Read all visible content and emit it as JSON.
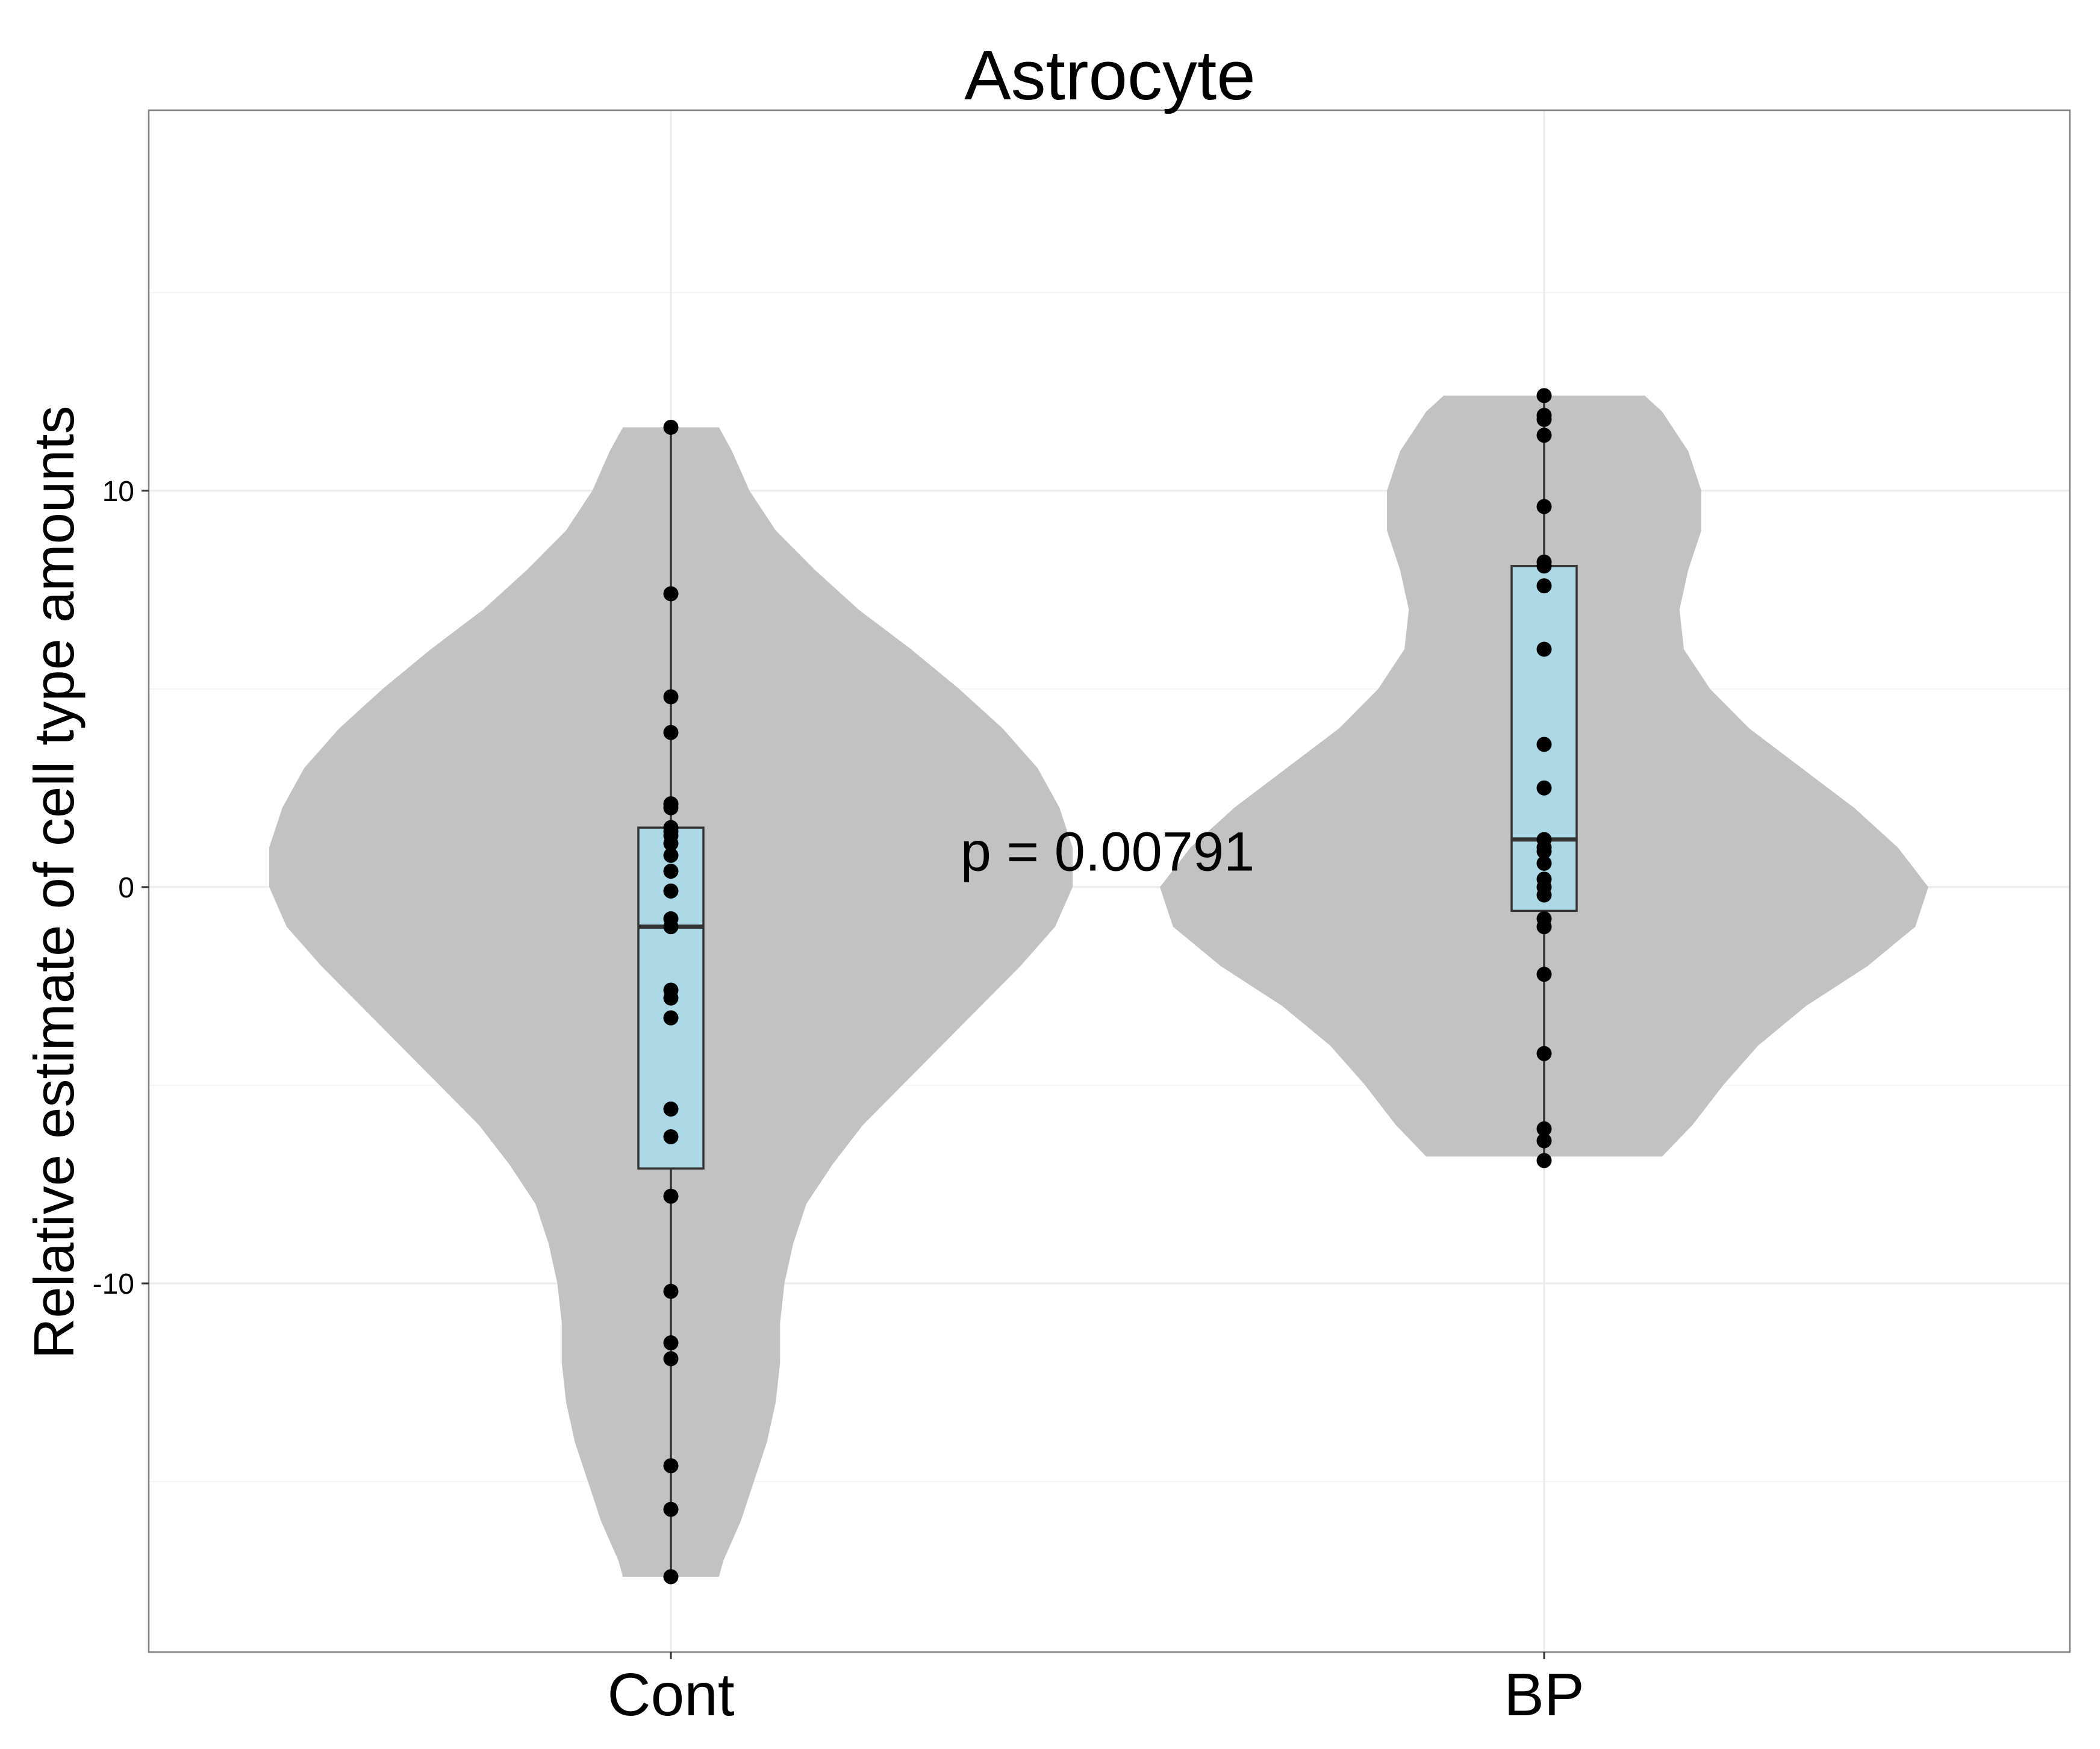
{
  "chart_data": {
    "type": "violin",
    "title": "Astrocyte",
    "xlabel": "",
    "ylabel": "Relative estimate of cell type amounts",
    "categories": [
      "Cont",
      "BP"
    ],
    "yticks": [
      -10,
      0,
      10
    ],
    "ylim": [
      -19.3,
      19.6
    ],
    "grid": true,
    "annotation": "p = 0.00791",
    "colors": {
      "violin": "#c2c2c2",
      "box": "#add8e6",
      "points": "#000000",
      "grid": "#ebebeb",
      "panel_border": "#7f7f7f"
    },
    "groups": [
      {
        "name": "Cont",
        "points": [
          11.6,
          7.4,
          4.8,
          3.9,
          2.1,
          2.0,
          1.5,
          1.4,
          1.3,
          1.1,
          0.8,
          0.4,
          -0.1,
          -0.8,
          -1.0,
          -2.6,
          -2.8,
          -3.3,
          -5.6,
          -6.3,
          -7.8,
          -10.2,
          -11.5,
          -11.9,
          -14.6,
          -15.7,
          -17.4
        ],
        "box": {
          "q1": -7.1,
          "median": -1.0,
          "q3": 1.5,
          "whisker_low": -17.4,
          "whisker_high": 11.6
        },
        "violin": {
          "y": [
            11.6,
            11.0,
            10.0,
            9.0,
            8.0,
            7.0,
            6.0,
            5.0,
            4.0,
            3.0,
            2.0,
            1.0,
            0.0,
            -1.0,
            -2.0,
            -3.0,
            -4.0,
            -5.0,
            -6.0,
            -7.0,
            -8.0,
            -9.0,
            -10.0,
            -11.0,
            -12.0,
            -13.0,
            -14.0,
            -15.0,
            -16.0,
            -17.0,
            -17.4
          ],
          "half_width": [
            0.11,
            0.14,
            0.18,
            0.24,
            0.33,
            0.43,
            0.55,
            0.66,
            0.76,
            0.84,
            0.89,
            0.92,
            0.92,
            0.88,
            0.8,
            0.71,
            0.62,
            0.53,
            0.44,
            0.37,
            0.31,
            0.28,
            0.26,
            0.25,
            0.25,
            0.24,
            0.22,
            0.19,
            0.16,
            0.12,
            0.11
          ]
        }
      },
      {
        "name": "BP",
        "points": [
          12.4,
          11.9,
          11.8,
          11.4,
          9.6,
          8.2,
          8.1,
          7.6,
          6.0,
          3.6,
          2.5,
          1.2,
          1.0,
          0.9,
          0.6,
          0.2,
          0.0,
          -0.2,
          -0.8,
          -1.0,
          -2.2,
          -4.2,
          -6.1,
          -6.4,
          -6.9
        ],
        "box": {
          "q1": -0.6,
          "median": 1.2,
          "q3": 8.1,
          "whisker_low": -6.9,
          "whisker_high": 12.4
        },
        "violin": {
          "y": [
            12.4,
            12.0,
            11.0,
            10.0,
            9.0,
            8.0,
            7.0,
            6.0,
            5.0,
            4.0,
            3.0,
            2.0,
            1.0,
            0.0,
            -1.0,
            -2.0,
            -3.0,
            -4.0,
            -5.0,
            -6.0,
            -6.8
          ],
          "half_width": [
            0.23,
            0.27,
            0.33,
            0.36,
            0.36,
            0.33,
            0.31,
            0.32,
            0.38,
            0.47,
            0.59,
            0.71,
            0.81,
            0.88,
            0.85,
            0.74,
            0.6,
            0.49,
            0.41,
            0.34,
            0.27
          ]
        }
      }
    ]
  }
}
